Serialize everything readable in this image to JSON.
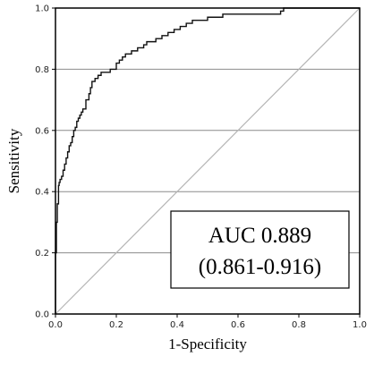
{
  "chart_data": {
    "type": "line",
    "title": "",
    "xlabel": "1-Specificity",
    "ylabel": "Sensitivity",
    "xlim": [
      0.0,
      1.0
    ],
    "ylim": [
      0.0,
      1.0
    ],
    "x_ticks": [
      "0.0",
      "0.2",
      "0.4",
      "0.6",
      "0.8",
      "1.0"
    ],
    "y_ticks": [
      "0.0",
      "0.2",
      "0.4",
      "0.6",
      "0.8",
      "1.0"
    ],
    "grid": "horizontal",
    "series": [
      {
        "name": "",
        "style": "step",
        "color": "#000000",
        "x": [
          0.0,
          0.0,
          0.003,
          0.006,
          0.01,
          0.012,
          0.015,
          0.02,
          0.025,
          0.03,
          0.035,
          0.04,
          0.045,
          0.05,
          0.055,
          0.06,
          0.065,
          0.07,
          0.075,
          0.08,
          0.085,
          0.09,
          0.1,
          0.11,
          0.115,
          0.12,
          0.13,
          0.14,
          0.15,
          0.16,
          0.18,
          0.2,
          0.21,
          0.22,
          0.23,
          0.24,
          0.25,
          0.27,
          0.29,
          0.3,
          0.31,
          0.33,
          0.35,
          0.37,
          0.39,
          0.41,
          0.43,
          0.45,
          0.47,
          0.5,
          0.55,
          0.6,
          0.65,
          0.7,
          0.74,
          0.75,
          0.8,
          1.0
        ],
        "y": [
          0.0,
          0.2,
          0.3,
          0.36,
          0.42,
          0.43,
          0.44,
          0.45,
          0.47,
          0.49,
          0.51,
          0.53,
          0.55,
          0.56,
          0.58,
          0.6,
          0.61,
          0.63,
          0.64,
          0.65,
          0.66,
          0.67,
          0.7,
          0.72,
          0.74,
          0.76,
          0.77,
          0.78,
          0.79,
          0.79,
          0.8,
          0.82,
          0.83,
          0.84,
          0.85,
          0.85,
          0.86,
          0.87,
          0.88,
          0.89,
          0.89,
          0.9,
          0.91,
          0.92,
          0.93,
          0.94,
          0.95,
          0.96,
          0.96,
          0.97,
          0.98,
          0.98,
          0.98,
          0.98,
          0.99,
          1.0,
          1.0,
          1.0
        ]
      },
      {
        "name": "",
        "style": "reference",
        "color": "#b0b0b0",
        "x": [
          0,
          1
        ],
        "y": [
          0,
          1
        ]
      }
    ],
    "annotation": {
      "line1": "AUC 0.889",
      "line2": "(0.861-0.916)"
    }
  }
}
